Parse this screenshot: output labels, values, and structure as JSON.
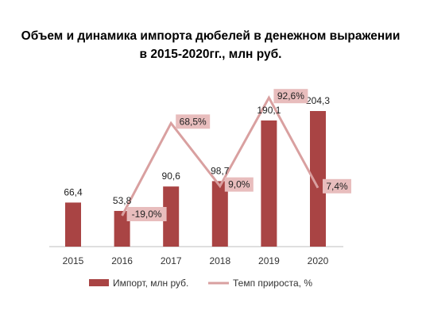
{
  "colors": {
    "bar": "#A94444",
    "line": "#D9A0A0",
    "label_box": "#E8BDBD",
    "axis": "#BFBFBF"
  },
  "chart_data": {
    "type": "bar",
    "title_lines": [
      "Объем и динамика импорта дюбелей в денежном выражении",
      "в 2015-2020гг., млн руб."
    ],
    "categories": [
      "2015",
      "2016",
      "2017",
      "2018",
      "2019",
      "2020"
    ],
    "series": [
      {
        "name": "Импорт, млн руб.",
        "type": "bar",
        "values": [
          66.4,
          53.8,
          90.6,
          98.7,
          190.1,
          204.3
        ],
        "labels": [
          "66,4",
          "53,8",
          "90,6",
          "98,7",
          "190,1",
          "204,3"
        ]
      },
      {
        "name": "Темп прироста, %",
        "type": "line",
        "axis": "secondary",
        "values": [
          null,
          -19.0,
          68.5,
          9.0,
          92.6,
          7.4
        ],
        "labels": [
          "",
          "-19,0%",
          "68,5%",
          "9,0%",
          "92,6%",
          "7,4%"
        ]
      }
    ],
    "legend": "bottom",
    "grid": false
  }
}
